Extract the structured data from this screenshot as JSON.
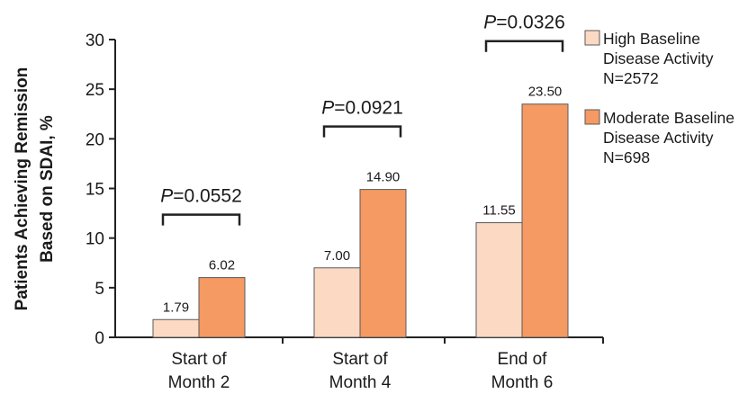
{
  "chart_data": {
    "type": "bar",
    "ylabel_lines": [
      "Patients Achieving Remission",
      "Based on SDAI, %"
    ],
    "xlabel": "",
    "ylim": [
      0,
      30
    ],
    "yticks": [
      0,
      5,
      10,
      15,
      20,
      25,
      30
    ],
    "ytick_labels": [
      "0",
      "5",
      "10",
      "15",
      "20",
      "25",
      "30"
    ],
    "categories": [
      {
        "lines": [
          "Start of",
          "Month 2"
        ]
      },
      {
        "lines": [
          "Start of",
          "Month 4"
        ]
      },
      {
        "lines": [
          "End of",
          "Month 6"
        ]
      }
    ],
    "series": [
      {
        "name_lines": [
          "High Baseline",
          "Disease Activity",
          "N=2572"
        ],
        "color": "#fcd9c3",
        "values": [
          1.79,
          7.0,
          11.55
        ],
        "labels": [
          "1.79",
          "7.00",
          "11.55"
        ]
      },
      {
        "name_lines": [
          "Moderate Baseline",
          "Disease Activity",
          "N=698"
        ],
        "color": "#f49a62",
        "values": [
          6.02,
          14.9,
          23.5
        ],
        "labels": [
          "6.02",
          "14.90",
          "23.50"
        ]
      }
    ],
    "p_values": [
      {
        "p": "P",
        "rest": "=0.0552"
      },
      {
        "p": "P",
        "rest": "=0.0921"
      },
      {
        "p": "P",
        "rest": "=0.0326"
      }
    ],
    "legend_position": "right"
  }
}
